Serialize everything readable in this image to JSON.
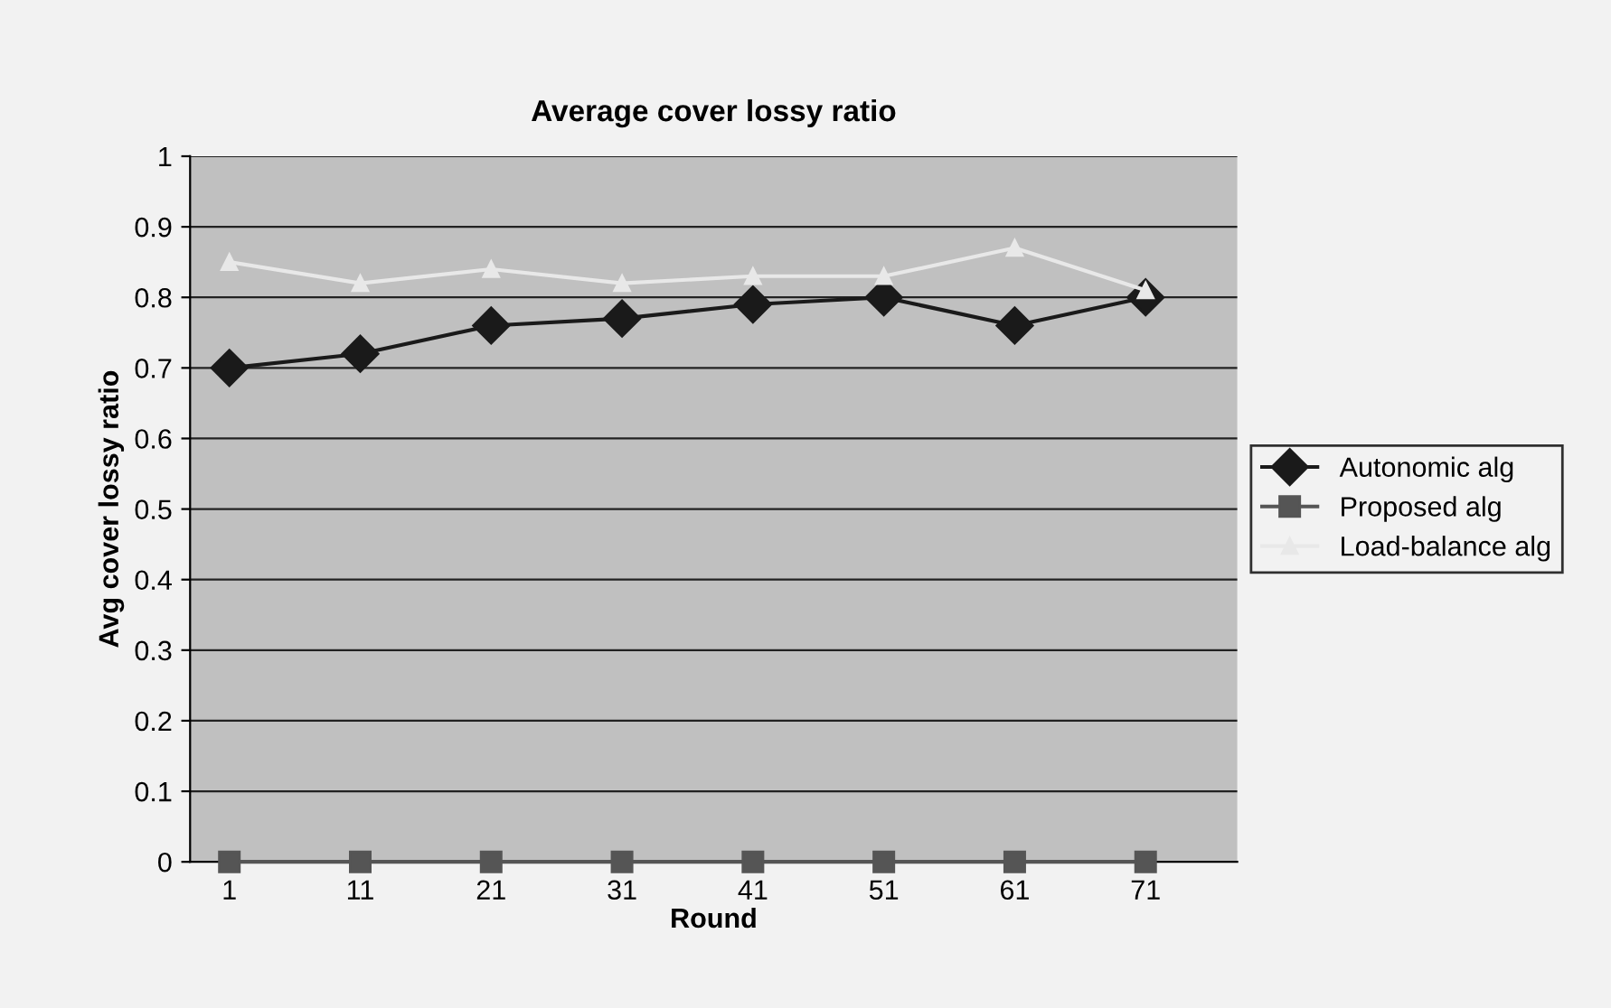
{
  "chart_data": {
    "type": "line",
    "title": "Average cover lossy ratio",
    "xlabel": "Round",
    "ylabel": "Avg cover lossy ratio",
    "categories": [
      "1",
      "11",
      "21",
      "31",
      "41",
      "51",
      "61",
      "71"
    ],
    "series": [
      {
        "name": "Autonomic alg",
        "color": "#1a1a1a",
        "marker": "diamond",
        "values": [
          0.7,
          0.72,
          0.76,
          0.77,
          0.79,
          0.8,
          0.76,
          0.8
        ]
      },
      {
        "name": "Proposed alg",
        "color": "#555555",
        "marker": "square",
        "values": [
          0,
          0,
          0,
          0,
          0,
          0,
          0,
          0
        ]
      },
      {
        "name": "Load-balance alg",
        "color": "#e8e8e8",
        "marker": "triangle",
        "values": [
          0.85,
          0.82,
          0.84,
          0.82,
          0.83,
          0.83,
          0.87,
          0.81
        ]
      }
    ],
    "ylim": [
      0,
      1
    ],
    "yticks": [
      0,
      {
        "value": 0.1,
        "label": "0.1"
      },
      {
        "value": 0.2,
        "label": "0.2"
      },
      {
        "value": 0.3,
        "label": "0.3"
      },
      {
        "value": 0.4,
        "label": "0.4"
      },
      {
        "value": 0.5,
        "label": "0.5"
      },
      {
        "value": 0.6,
        "label": "0.6"
      },
      {
        "value": 0.7,
        "label": "0.7"
      },
      {
        "value": 0.8,
        "label": "0.8"
      },
      {
        "value": 0.9,
        "label": "0.9"
      },
      1
    ],
    "grid": "y",
    "legend": "right"
  }
}
